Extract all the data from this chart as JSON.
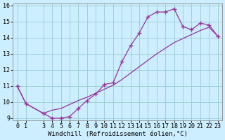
{
  "xlabel": "Windchill (Refroidissement éolien,°C)",
  "background_color": "#cceeff",
  "grid_color": "#99cccc",
  "line_color": "#993399",
  "xlim_min": -0.5,
  "xlim_max": 23.5,
  "ylim_min": 8.85,
  "ylim_max": 16.15,
  "yticks": [
    9,
    10,
    11,
    12,
    13,
    14,
    15,
    16
  ],
  "xticks": [
    0,
    1,
    3,
    4,
    5,
    6,
    7,
    8,
    9,
    10,
    11,
    12,
    13,
    14,
    15,
    16,
    17,
    18,
    19,
    20,
    21,
    22,
    23
  ],
  "x_actual": [
    0,
    1,
    3,
    4,
    5,
    6,
    7,
    8,
    9,
    10,
    11,
    12,
    13,
    14,
    15,
    16,
    17,
    18,
    19,
    20,
    21,
    22,
    23
  ],
  "y_actual": [
    11.0,
    9.9,
    9.3,
    9.0,
    9.0,
    9.1,
    9.6,
    10.1,
    10.5,
    11.1,
    11.2,
    12.5,
    13.5,
    14.3,
    15.3,
    15.6,
    15.6,
    15.8,
    14.7,
    14.5,
    14.9,
    14.8,
    14.1
  ],
  "x_smooth": [
    0,
    1,
    3,
    4,
    5,
    6,
    7,
    8,
    9,
    10,
    11,
    12,
    13,
    14,
    15,
    16,
    17,
    18,
    19,
    20,
    21,
    22,
    23
  ],
  "y_smooth": [
    11.0,
    9.9,
    9.3,
    9.5,
    9.6,
    9.85,
    10.1,
    10.3,
    10.55,
    10.8,
    11.05,
    11.4,
    11.8,
    12.2,
    12.6,
    13.0,
    13.35,
    13.7,
    13.95,
    14.2,
    14.45,
    14.65,
    14.1
  ],
  "marker": "+",
  "markersize": 4,
  "markeredgewidth": 1.0,
  "linewidth": 0.9,
  "xlabel_fontsize": 6.5,
  "tick_fontsize": 6.0,
  "spine_color": "#888888"
}
